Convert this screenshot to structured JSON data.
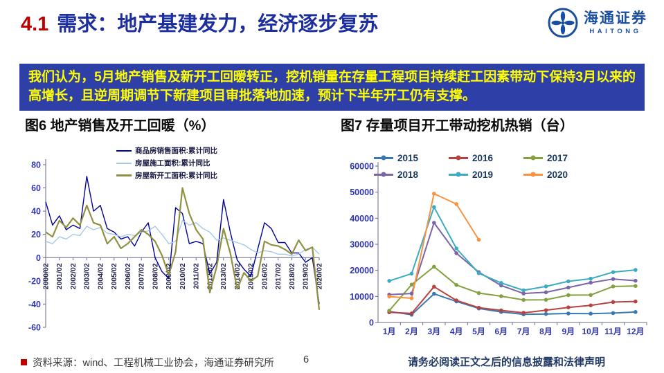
{
  "slide": {
    "title_number": "4.1",
    "title": "需求：地产基建发力，经济逐步复苏",
    "banner": "我们认为，5月地产销售及新开工回暖转正，挖机销量在存量工程项目持续赶工因素带动下保持3月以来的高增长，且逆周期调节下新建项目审批落地加速，预计下半年开工仍有支撑。",
    "logo": {
      "name": "海通证券",
      "sub": "HAITONG"
    },
    "footer": {
      "source": "资料来源：wind、工程机械工业协会，海通证券研究所",
      "page": "6",
      "disclaimer": "请务必阅读正文之后的信息披露和法律声明"
    },
    "colors": {
      "accent_red": "#C00000",
      "title_blue": "#1D2F9E",
      "banner_bg": "#2F3FA8",
      "banner_text": "#FFFF00",
      "axis_text_blue": "#2F36B0",
      "legend_navy": "#17375E"
    }
  },
  "chart_data": [
    {
      "type": "line",
      "title": "图6  地产销售及开工回暖（%）",
      "x_unit": "semiannual points (Feb/Aug) from 2000/02 to 2020/02, values estimated from plot",
      "x_tick_labels": [
        "2000/02",
        "2001/02",
        "2002/02",
        "2003/02",
        "2004/02",
        "2005/02",
        "2006/02",
        "2007/02",
        "2008/02",
        "2009/02",
        "2010/02",
        "2011/02",
        "2012/02",
        "2013/02",
        "2014/02",
        "2015/02",
        "2016/02",
        "2017/02",
        "2018/02",
        "2019/02",
        "2020/02"
      ],
      "ylim": [
        -60,
        80
      ],
      "yticks": [
        80,
        60,
        40,
        20,
        0,
        -20,
        -40,
        -60
      ],
      "grid": false,
      "legend_position": "top-center",
      "series": [
        {
          "name": "商品房销售面积:累计同比",
          "color": "#00009C",
          "width": 1.4,
          "values": [
            48,
            28,
            36,
            24,
            28,
            25,
            70,
            40,
            45,
            25,
            22,
            16,
            18,
            10,
            22,
            30,
            0,
            -12,
            -18,
            43,
            38,
            12,
            14,
            12,
            -14,
            -4,
            50,
            22,
            -2,
            -10,
            -16,
            7,
            30,
            25,
            13,
            13,
            4,
            4,
            -4,
            0,
            -40
          ]
        },
        {
          "name": "房屋施工面积:累计同比",
          "color": "#A6C9E8",
          "width": 1.4,
          "values": [
            14,
            12,
            18,
            16,
            20,
            19,
            27,
            24,
            26,
            21,
            20,
            18,
            20,
            19,
            22,
            23,
            27,
            20,
            12,
            14,
            32,
            28,
            30,
            25,
            22,
            15,
            17,
            15,
            13,
            11,
            7,
            4,
            6,
            5,
            3,
            3,
            1.5,
            3,
            7,
            9,
            3
          ]
        },
        {
          "name": "房屋新开工面积:累计同比",
          "color": "#8F9140",
          "width": 2.2,
          "values": [
            22,
            18,
            32,
            26,
            34,
            28,
            45,
            30,
            28,
            12,
            18,
            8,
            12,
            18,
            24,
            20,
            14,
            2,
            -15,
            5,
            60,
            38,
            24,
            16,
            -30,
            -8,
            25,
            4,
            -27,
            -13,
            -20,
            -16,
            14,
            11,
            10,
            7,
            3,
            15,
            6,
            9,
            -45
          ]
        }
      ]
    },
    {
      "type": "line",
      "title": "图7  存量项目开工带动挖机热销（台）",
      "categories": [
        "1月",
        "2月",
        "3月",
        "4月",
        "5月",
        "6月",
        "7月",
        "8月",
        "9月",
        "10月",
        "11月",
        "12月"
      ],
      "ylim": [
        0,
        60000
      ],
      "yticks": [
        60000,
        50000,
        40000,
        30000,
        20000,
        10000,
        0
      ],
      "grid": false,
      "markers": true,
      "legend_position": "top",
      "series": [
        {
          "name": "2015",
          "color": "#3A78B3",
          "values": [
            4210,
            2982,
            11002,
            8077,
            5382,
            4037,
            3128,
            3269,
            3448,
            3390,
            3608,
            4021
          ]
        },
        {
          "name": "2016",
          "color": "#B6433F",
          "values": [
            3917,
            3472,
            13724,
            8480,
            5678,
            4633,
            3723,
            4702,
            5788,
            6567,
            7839,
            8059
          ]
        },
        {
          "name": "2017",
          "color": "#84A140",
          "values": [
            4548,
            14530,
            21389,
            14397,
            11283,
            10085,
            8656,
            8714,
            10496,
            10541,
            13822,
            14005
          ]
        },
        {
          "name": "2018",
          "color": "#7C64A5",
          "values": [
            10687,
            11113,
            38261,
            26561,
            19313,
            14188,
            11123,
            11588,
            13408,
            15274,
            16675,
            16027
          ]
        },
        {
          "name": "2019",
          "color": "#3AABC0",
          "values": [
            15950,
            18745,
            44278,
            28410,
            18897,
            15182,
            12346,
            13843,
            15799,
            16816,
            19316,
            20155
          ]
        },
        {
          "name": "2020",
          "color": "#F79240",
          "values": [
            9942,
            9280,
            49408,
            45426,
            31744,
            null,
            null,
            null,
            null,
            null,
            null,
            null
          ]
        }
      ]
    }
  ]
}
